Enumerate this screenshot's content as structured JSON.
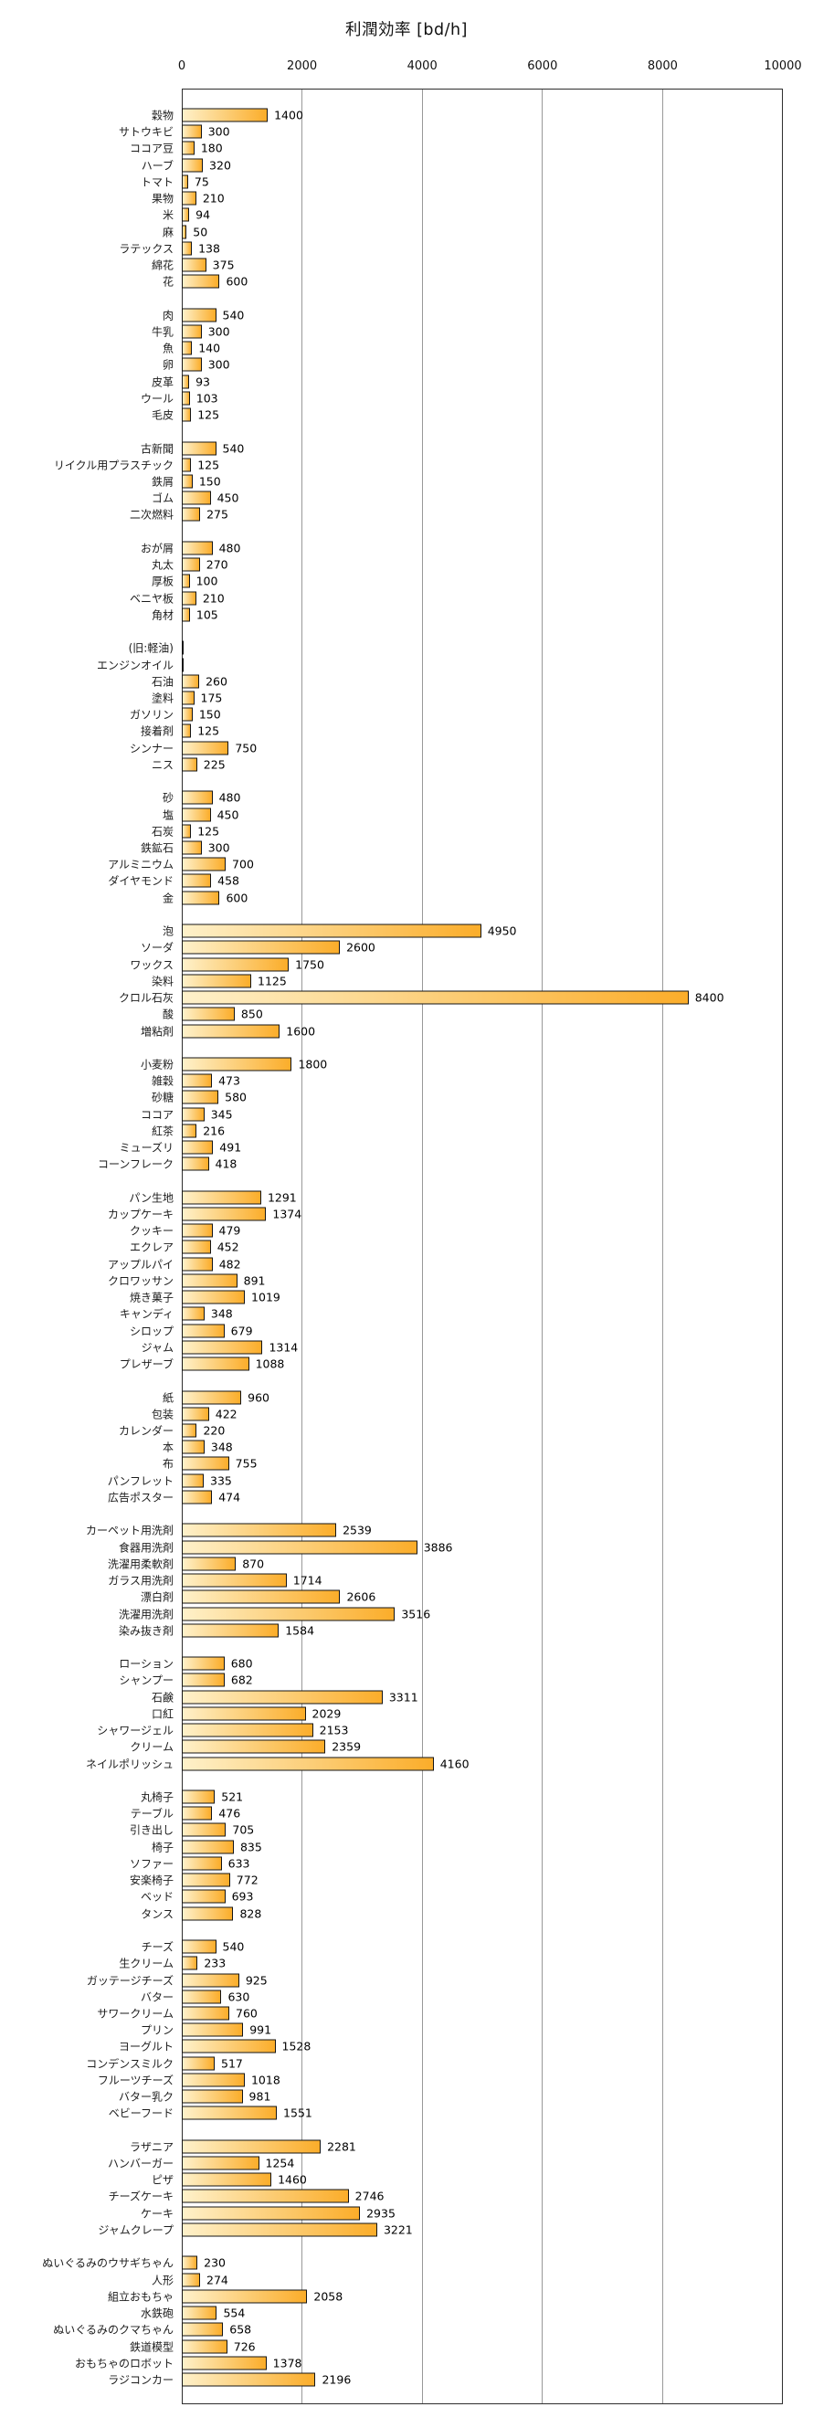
{
  "chart_data": {
    "type": "bar",
    "orientation": "horizontal",
    "title": "利潤効率 [bd/h]",
    "xlim": [
      0,
      10000
    ],
    "x_ticks": [
      0,
      2000,
      4000,
      6000,
      8000,
      10000
    ],
    "grid": true,
    "legend": "none",
    "bar_style": {
      "fill_gradient_left": "#FEF1CA",
      "fill_gradient_right": "#FBAD2A",
      "border_color": "#141414"
    },
    "groups": [
      {
        "items": [
          {
            "label": "穀物",
            "value": 1400
          },
          {
            "label": "サトウキビ",
            "value": 300
          },
          {
            "label": "ココア豆",
            "value": 180
          },
          {
            "label": "ハーブ",
            "value": 320
          },
          {
            "label": "トマト",
            "value": 75
          },
          {
            "label": "果物",
            "value": 210
          },
          {
            "label": "米",
            "value": 94
          },
          {
            "label": "麻",
            "value": 50
          },
          {
            "label": "ラテックス",
            "value": 138
          },
          {
            "label": "綿花",
            "value": 375
          },
          {
            "label": "花",
            "value": 600
          }
        ]
      },
      {
        "items": [
          {
            "label": "肉",
            "value": 540
          },
          {
            "label": "牛乳",
            "value": 300
          },
          {
            "label": "魚",
            "value": 140
          },
          {
            "label": "卵",
            "value": 300
          },
          {
            "label": "皮革",
            "value": 93
          },
          {
            "label": "ウール",
            "value": 103
          },
          {
            "label": "毛皮",
            "value": 125
          }
        ]
      },
      {
        "items": [
          {
            "label": "古新聞",
            "value": 540
          },
          {
            "label": "リイクル用プラスチック",
            "value": 125
          },
          {
            "label": "鉄屑",
            "value": 150
          },
          {
            "label": "ゴム",
            "value": 450
          },
          {
            "label": "二次燃料",
            "value": 275
          }
        ]
      },
      {
        "items": [
          {
            "label": "おが屑",
            "value": 480
          },
          {
            "label": "丸太",
            "value": 270
          },
          {
            "label": "厚板",
            "value": 100
          },
          {
            "label": "ベニヤ板",
            "value": 210
          },
          {
            "label": "角材",
            "value": 105
          }
        ]
      },
      {
        "items": [
          {
            "label": "(旧:軽油)",
            "value": 0
          },
          {
            "label": "エンジンオイル",
            "value": 0
          },
          {
            "label": "石油",
            "value": 260
          },
          {
            "label": "塗料",
            "value": 175
          },
          {
            "label": "ガソリン",
            "value": 150
          },
          {
            "label": "接着剤",
            "value": 125
          },
          {
            "label": "シンナー",
            "value": 750
          },
          {
            "label": "ニス",
            "value": 225
          }
        ]
      },
      {
        "items": [
          {
            "label": "砂",
            "value": 480
          },
          {
            "label": "塩",
            "value": 450
          },
          {
            "label": "石炭",
            "value": 125
          },
          {
            "label": "鉄鉱石",
            "value": 300
          },
          {
            "label": "アルミニウム",
            "value": 700
          },
          {
            "label": "ダイヤモンド",
            "value": 458
          },
          {
            "label": "金",
            "value": 600
          }
        ]
      },
      {
        "items": [
          {
            "label": "泡",
            "value": 4950
          },
          {
            "label": "ソーダ",
            "value": 2600
          },
          {
            "label": "ワックス",
            "value": 1750
          },
          {
            "label": "染料",
            "value": 1125
          },
          {
            "label": "クロル石灰",
            "value": 8400
          },
          {
            "label": "酸",
            "value": 850
          },
          {
            "label": "増粘剤",
            "value": 1600
          }
        ]
      },
      {
        "items": [
          {
            "label": "小麦粉",
            "value": 1800
          },
          {
            "label": "雑穀",
            "value": 473
          },
          {
            "label": "砂糖",
            "value": 580
          },
          {
            "label": "ココア",
            "value": 345
          },
          {
            "label": "紅茶",
            "value": 216
          },
          {
            "label": "ミューズリ",
            "value": 491
          },
          {
            "label": "コーンフレーク",
            "value": 418
          }
        ]
      },
      {
        "items": [
          {
            "label": "パン生地",
            "value": 1291
          },
          {
            "label": "カップケーキ",
            "value": 1374
          },
          {
            "label": "クッキー",
            "value": 479
          },
          {
            "label": "エクレア",
            "value": 452
          },
          {
            "label": "アップルパイ",
            "value": 482
          },
          {
            "label": "クロワッサン",
            "value": 891
          },
          {
            "label": "焼き菓子",
            "value": 1019
          },
          {
            "label": "キャンディ",
            "value": 348
          },
          {
            "label": "シロップ",
            "value": 679
          },
          {
            "label": "ジャム",
            "value": 1314
          },
          {
            "label": "プレザーブ",
            "value": 1088
          }
        ]
      },
      {
        "items": [
          {
            "label": "紙",
            "value": 960
          },
          {
            "label": "包装",
            "value": 422
          },
          {
            "label": "カレンダー",
            "value": 220
          },
          {
            "label": "本",
            "value": 348
          },
          {
            "label": "布",
            "value": 755
          },
          {
            "label": "パンフレット",
            "value": 335
          },
          {
            "label": "広告ポスター",
            "value": 474
          }
        ]
      },
      {
        "items": [
          {
            "label": "カーペット用洗剤",
            "value": 2539
          },
          {
            "label": "食器用洗剤",
            "value": 3886
          },
          {
            "label": "洗濯用柔軟剤",
            "value": 870
          },
          {
            "label": "ガラス用洗剤",
            "value": 1714
          },
          {
            "label": "漂白剤",
            "value": 2606
          },
          {
            "label": "洗濯用洗剤",
            "value": 3516
          },
          {
            "label": "染み抜き剤",
            "value": 1584
          }
        ]
      },
      {
        "items": [
          {
            "label": "ローション",
            "value": 680
          },
          {
            "label": "シャンプー",
            "value": 682
          },
          {
            "label": "石鹸",
            "value": 3311
          },
          {
            "label": "口紅",
            "value": 2029
          },
          {
            "label": "シャワージェル",
            "value": 2153
          },
          {
            "label": "クリーム",
            "value": 2359
          },
          {
            "label": "ネイルポリッシュ",
            "value": 4160
          }
        ]
      },
      {
        "items": [
          {
            "label": "丸椅子",
            "value": 521
          },
          {
            "label": "テーブル",
            "value": 476
          },
          {
            "label": "引き出し",
            "value": 705
          },
          {
            "label": "椅子",
            "value": 835
          },
          {
            "label": "ソファー",
            "value": 633
          },
          {
            "label": "安楽椅子",
            "value": 772
          },
          {
            "label": "ベッド",
            "value": 693
          },
          {
            "label": "タンス",
            "value": 828
          }
        ]
      },
      {
        "items": [
          {
            "label": "チーズ",
            "value": 540
          },
          {
            "label": "生クリーム",
            "value": 233
          },
          {
            "label": "ガッテージチーズ",
            "value": 925
          },
          {
            "label": "バター",
            "value": 630
          },
          {
            "label": "サワークリーム",
            "value": 760
          },
          {
            "label": "プリン",
            "value": 991
          },
          {
            "label": "ヨーグルト",
            "value": 1528
          },
          {
            "label": "コンデンスミルク",
            "value": 517
          },
          {
            "label": "フルーツチーズ",
            "value": 1018
          },
          {
            "label": "バター乳ク",
            "value": 981
          },
          {
            "label": "ベビーフード",
            "value": 1551
          }
        ]
      },
      {
        "items": [
          {
            "label": "ラザニア",
            "value": 2281
          },
          {
            "label": "ハンバーガー",
            "value": 1254
          },
          {
            "label": "ピザ",
            "value": 1460
          },
          {
            "label": "チーズケーキ",
            "value": 2746
          },
          {
            "label": "ケーキ",
            "value": 2935
          },
          {
            "label": "ジャムクレープ",
            "value": 3221
          }
        ]
      },
      {
        "items": [
          {
            "label": "ぬいぐるみのウサギちゃん",
            "value": 230
          },
          {
            "label": "人形",
            "value": 274
          },
          {
            "label": "組立おもちゃ",
            "value": 2058
          },
          {
            "label": "水鉄砲",
            "value": 554
          },
          {
            "label": "ぬいぐるみのクマちゃん",
            "value": 658
          },
          {
            "label": "鉄道模型",
            "value": 726
          },
          {
            "label": "おもちゃのロボット",
            "value": 1378
          },
          {
            "label": "ラジコンカー",
            "value": 2196
          }
        ]
      }
    ]
  }
}
